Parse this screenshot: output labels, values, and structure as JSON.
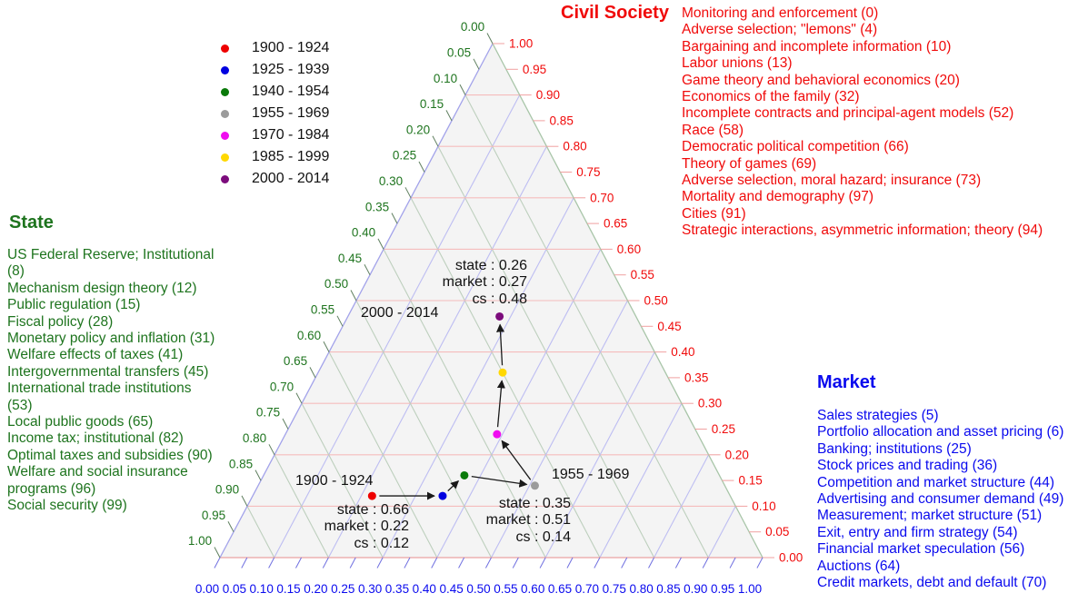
{
  "titles": {
    "state": "State",
    "civil_society": "Civil Society",
    "market": "Market"
  },
  "legend": {
    "items": [
      {
        "label": "1900 - 1924",
        "color": "#ee0000"
      },
      {
        "label": "1925 - 1939",
        "color": "#0000e0"
      },
      {
        "label": "1940 - 1954",
        "color": "#0a7a0a"
      },
      {
        "label": "1955 - 1969",
        "color": "#9b9b9b"
      },
      {
        "label": "1970 - 1984",
        "color": "#f00cf0"
      },
      {
        "label": "1985 - 1999",
        "color": "#ffd800"
      },
      {
        "label": "2000 - 2014",
        "color": "#7c0c7c"
      }
    ]
  },
  "topics": {
    "civil_society": [
      "Monitoring and enforcement (0)",
      "Adverse selection; \"lemons\" (4)",
      "Bargaining and incomplete information (10)",
      "Labor unions (13)",
      "Game theory and behavioral economics (20)",
      "Economics of the family (32)",
      "Incomplete contracts and principal-agent models (52)",
      "Race (58)",
      "Democratic political competition (66)",
      "Theory of games (69)",
      "Adverse selection, moral hazard; insurance (73)",
      "Mortality and demography (97)",
      "Cities (91)",
      "Strategic interactions, asymmetric information; theory (94)"
    ],
    "state": [
      "US Federal Reserve; Institutional (8)",
      "Mechanism design theory (12)",
      "Public regulation (15)",
      "Fiscal policy (28)",
      "Monetary policy and inflation (31)",
      "Welfare effects of taxes (41)",
      "Intergovernmental transfers (45)",
      "International trade institutions (53)",
      "Local public goods (65)",
      "Income tax; institutional (82)",
      "Optimal taxes and subsidies (90)",
      "Welfare and social insurance programs (96)",
      "Social security (99)"
    ],
    "market": [
      "Sales strategies (5)",
      "Portfolio allocation and asset pricing (6)",
      "Banking; institutions (25)",
      "Stock prices and trading (36)",
      "Competition and market structure (44)",
      "Advertising and consumer demand (49)",
      "Measurement; market structure (51)",
      "Exit, entry and firm strategy (54)",
      "Financial market speculation (56)",
      "Auctions (64)",
      "Credit markets, debt and default (70)"
    ]
  },
  "annotations": [
    {
      "label": "1900 - 1924",
      "stats": [
        "state : 0.66",
        "market : 0.22",
        "cs : 0.12"
      ]
    },
    {
      "label": "1955 - 1969",
      "stats": [
        "state : 0.35",
        "market : 0.51",
        "cs : 0.14"
      ]
    },
    {
      "label": "2000 - 2014",
      "stats": [
        "state : 0.26",
        "market : 0.27",
        "cs : 0.48"
      ]
    }
  ],
  "chart_data": {
    "type": "scatter",
    "subtype": "ternary",
    "axes": {
      "left": {
        "name": "State",
        "min": 0,
        "max": 1,
        "tick_step": 0.05,
        "direction": "0.00 at top apex, 1.00 at bottom-left vertex"
      },
      "right": {
        "name": "Civil Society (cs)",
        "min": 0,
        "max": 1,
        "tick_step": 0.05,
        "direction": "1.00 at top apex, 0.00 at bottom-right vertex"
      },
      "bottom": {
        "name": "Market",
        "min": 0,
        "max": 1,
        "tick_step": 0.05,
        "direction": "0.00 at bottom-left vertex, 1.00 at bottom-right vertex"
      }
    },
    "grid": {
      "major_step": 0.1,
      "values": [
        0.1,
        0.2,
        0.3,
        0.4,
        0.5,
        0.6,
        0.7,
        0.8,
        0.9
      ]
    },
    "tick_labels": [
      "0.00",
      "0.05",
      "0.10",
      "0.15",
      "0.20",
      "0.25",
      "0.30",
      "0.35",
      "0.40",
      "0.45",
      "0.50",
      "0.55",
      "0.60",
      "0.65",
      "0.70",
      "0.75",
      "0.80",
      "0.85",
      "0.90",
      "0.95",
      "1.00"
    ],
    "points": [
      {
        "period": "1900 - 1924",
        "color": "#ee0000",
        "state": 0.66,
        "market": 0.22,
        "cs": 0.12,
        "labeled_on_chart": true
      },
      {
        "period": "1925 - 1939",
        "color": "#0000e0",
        "state": 0.53,
        "market": 0.35,
        "cs": 0.12,
        "labeled_on_chart": false
      },
      {
        "period": "1940 - 1954",
        "color": "#0a7a0a",
        "state": 0.47,
        "market": 0.37,
        "cs": 0.16,
        "labeled_on_chart": false
      },
      {
        "period": "1955 - 1969",
        "color": "#9b9b9b",
        "state": 0.35,
        "market": 0.51,
        "cs": 0.14,
        "labeled_on_chart": true
      },
      {
        "period": "1970 - 1984",
        "color": "#f00cf0",
        "state": 0.37,
        "market": 0.39,
        "cs": 0.24,
        "labeled_on_chart": false
      },
      {
        "period": "1985 - 1999",
        "color": "#ffd800",
        "state": 0.3,
        "market": 0.34,
        "cs": 0.36,
        "labeled_on_chart": false
      },
      {
        "period": "2000 - 2014",
        "color": "#7c0c7c",
        "state": 0.26,
        "market": 0.27,
        "cs": 0.48,
        "labeled_on_chart": true
      }
    ],
    "path": "arrows connect periods in chronological order",
    "legend_position": "upper-left of triangle"
  },
  "colors": {
    "state_green": "#1e741e",
    "market_blue": "#0a0aee",
    "cs_red": "#f00a0a",
    "grid_pink": "#f5bcbc",
    "grid_blue": "#bdbdf2",
    "grid_green": "#bdcfbd",
    "edge_pink": "#eaa2a2",
    "edge_blue": "#a2a2ea",
    "edge_green": "#a8c5a8",
    "tick_left": "#5f7f5f",
    "tick_right": "#f0a0a0",
    "tick_bottom": "#7070e0",
    "panel_fill": "#f4f4f4",
    "arrow": "#1a1a1a"
  }
}
